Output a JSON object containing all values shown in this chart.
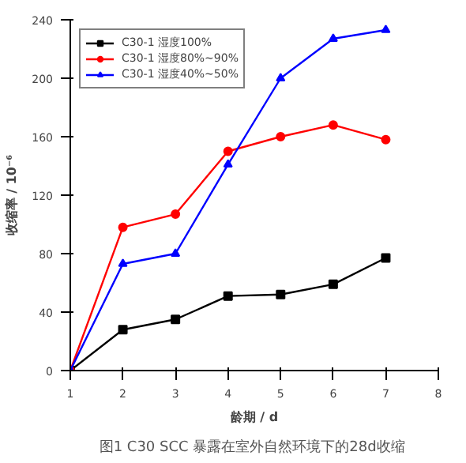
{
  "chart_data": {
    "type": "line",
    "title": "图1  C30 SCC 暴露在室外自然环境下的28d收缩",
    "xlabel": "龄期 / d",
    "ylabel": "收缩率 / 10⁻⁶",
    "x": [
      1,
      2,
      3,
      4,
      5,
      6,
      7
    ],
    "series": [
      {
        "name": "C30-1 湿度100%",
        "color": "#000000",
        "marker": "square",
        "values": [
          0,
          28,
          35,
          51,
          52,
          59,
          77
        ]
      },
      {
        "name": "C30-1 湿度80%~90%",
        "color": "#ff0000",
        "marker": "circle",
        "values": [
          0,
          98,
          107,
          150,
          160,
          168,
          158
        ]
      },
      {
        "name": "C30-1 湿度40%~50%",
        "color": "#0000ff",
        "marker": "triangle",
        "values": [
          0,
          73,
          80,
          141,
          200,
          227,
          233
        ]
      }
    ],
    "xlim": [
      1,
      8
    ],
    "xticks": [
      1,
      2,
      3,
      4,
      5,
      6,
      7,
      8
    ],
    "ylim": [
      0,
      240
    ],
    "yticks": [
      0,
      40,
      80,
      120,
      160,
      200,
      240
    ],
    "grid": false,
    "legend": "top left",
    "line_style": "solid"
  }
}
